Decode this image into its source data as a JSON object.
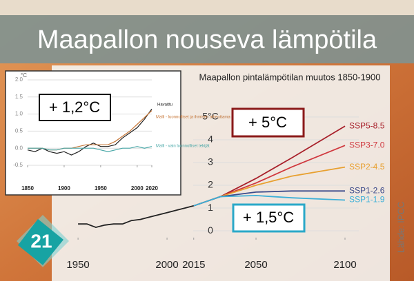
{
  "slide": {
    "title": "Maapallon nouseva lämpötila",
    "badge": "21",
    "source": "Lähde: IPCC"
  },
  "chart_data": [
    {
      "type": "line",
      "title": "Maapallon pintalämpötilan muutos 1850-1900",
      "annotations": [
        "+ 5°C",
        "+ 1,5°C"
      ],
      "xlim": [
        1945,
        2100
      ],
      "xticks": [
        1950,
        2000,
        2015,
        2050,
        2100
      ],
      "ylim": [
        -0.3,
        5.3
      ],
      "yticks": [
        0,
        1,
        2,
        3,
        4,
        {
          "value": 5,
          "label": "5°C"
        }
      ],
      "grid": true,
      "series": [
        {
          "name": null,
          "color": "#222222",
          "x": [
            1950,
            1955,
            1960,
            1965,
            1970,
            1975,
            1980,
            1985,
            1990,
            1995,
            2000,
            2005,
            2010,
            2015
          ],
          "values": [
            0.3,
            0.3,
            0.15,
            0.25,
            0.3,
            0.3,
            0.45,
            0.5,
            0.6,
            0.7,
            0.8,
            0.9,
            1.0,
            1.1
          ]
        },
        {
          "name": "SSP5-8.5",
          "color": "#a8202a",
          "x": [
            2015,
            2030,
            2050,
            2070,
            2100
          ],
          "values": [
            1.1,
            1.5,
            2.3,
            3.2,
            4.6
          ]
        },
        {
          "name": "SSP3-7.0",
          "color": "#d0383e",
          "x": [
            2015,
            2030,
            2050,
            2070,
            2100
          ],
          "values": [
            1.1,
            1.5,
            2.1,
            2.8,
            3.75
          ]
        },
        {
          "name": "SSP2-4.5",
          "color": "#e8a030",
          "x": [
            2015,
            2030,
            2050,
            2070,
            2100
          ],
          "values": [
            1.1,
            1.5,
            2.0,
            2.4,
            2.8
          ]
        },
        {
          "name": "SSP1-2.6",
          "color": "#3b4a8a",
          "x": [
            2015,
            2030,
            2050,
            2070,
            2100
          ],
          "values": [
            1.1,
            1.5,
            1.7,
            1.75,
            1.75
          ]
        },
        {
          "name": "SSP1-1.9",
          "color": "#3db0d8",
          "x": [
            2015,
            2030,
            2050,
            2070,
            2100
          ],
          "values": [
            1.1,
            1.5,
            1.55,
            1.45,
            1.35
          ]
        }
      ]
    },
    {
      "type": "line",
      "unit": "°C",
      "annotations": [
        "+ 1,2°C"
      ],
      "xlim": [
        1850,
        2020
      ],
      "xticks": [
        1850,
        1900,
        1950,
        2000,
        2020
      ],
      "ylim": [
        -0.5,
        2.0
      ],
      "yticks": [
        -0.5,
        {
          "value": 0,
          "label": "0.0"
        },
        0.5,
        {
          "value": 1,
          "label": "1.0"
        },
        1.5,
        {
          "value": 2,
          "label": "2.0"
        }
      ],
      "grid": true,
      "series": [
        {
          "name": "Havaittu",
          "color": "#222222",
          "x": [
            1850,
            1860,
            1870,
            1880,
            1890,
            1900,
            1910,
            1920,
            1930,
            1940,
            1950,
            1960,
            1970,
            1980,
            1990,
            2000,
            2010,
            2020
          ],
          "values": [
            -0.05,
            -0.1,
            0,
            -0.1,
            -0.15,
            -0.1,
            -0.2,
            -0.1,
            0.05,
            0.15,
            0.05,
            0.05,
            0.1,
            0.3,
            0.45,
            0.6,
            0.85,
            1.15
          ]
        },
        {
          "name": "Malli - luonnolliset ja ihmisen aiheuttama",
          "color": "#c8783a",
          "x": [
            1850,
            1860,
            1870,
            1880,
            1890,
            1900,
            1910,
            1920,
            1930,
            1940,
            1950,
            1960,
            1970,
            1980,
            1990,
            2000,
            2010,
            2020
          ],
          "values": [
            0,
            0,
            0,
            -0.05,
            -0.05,
            0,
            0,
            0.05,
            0.1,
            0.1,
            0.1,
            0.1,
            0.2,
            0.35,
            0.5,
            0.7,
            0.9,
            1.1
          ]
        },
        {
          "name": "Malli - vain luonnolliset tekijät",
          "color": "#4aa8a8",
          "x": [
            1850,
            1860,
            1870,
            1880,
            1890,
            1900,
            1910,
            1920,
            1930,
            1940,
            1950,
            1960,
            1970,
            1980,
            1990,
            2000,
            2010,
            2020
          ],
          "values": [
            0,
            0,
            0,
            -0.05,
            -0.05,
            0,
            0,
            0,
            0,
            0,
            -0.05,
            -0.1,
            -0.05,
            0,
            0,
            0.05,
            0,
            0.05
          ]
        }
      ]
    }
  ]
}
